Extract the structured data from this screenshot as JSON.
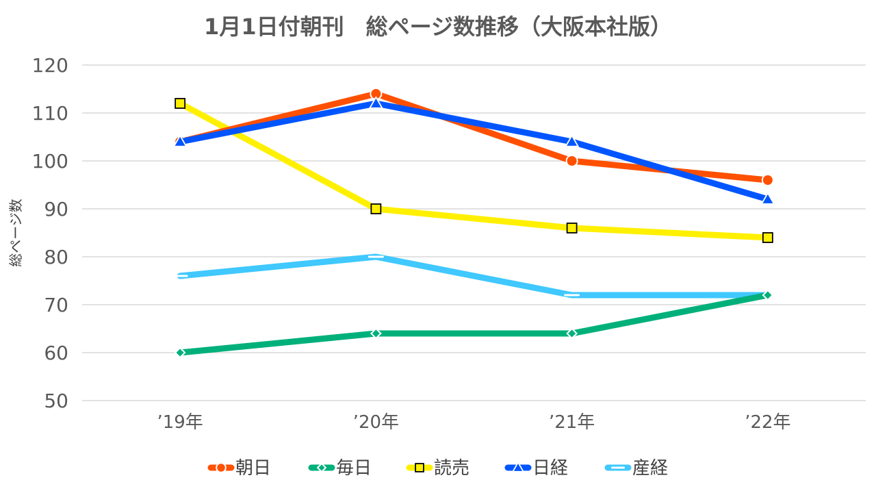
{
  "chart_data": {
    "type": "line",
    "title": "1月1日付朝刊　総ページ数推移（大阪本社版）",
    "xlabel": "",
    "ylabel": "総ページ数",
    "categories": [
      "’19年",
      "’20年",
      "’21年",
      "’22年"
    ],
    "ylim": [
      50,
      120
    ],
    "yticks": [
      50,
      60,
      70,
      80,
      90,
      100,
      110,
      120
    ],
    "grid": true,
    "legend_position": "bottom",
    "series": [
      {
        "name": "朝日",
        "values": [
          104,
          114,
          100,
          96
        ],
        "color": "#FF5000",
        "marker": "circle",
        "marker_color": "#FF5000"
      },
      {
        "name": "毎日",
        "values": [
          60,
          64,
          64,
          72
        ],
        "color": "#00B07A",
        "marker": "diamond",
        "marker_color": "#00B07A"
      },
      {
        "name": "読売",
        "values": [
          112,
          90,
          86,
          84
        ],
        "color": "#FFF000",
        "marker": "square",
        "marker_color": "#FFF000"
      },
      {
        "name": "日経",
        "values": [
          104,
          112,
          104,
          92
        ],
        "color": "#0055FF",
        "marker": "triangle",
        "marker_color": "#0055FF"
      },
      {
        "name": "産経",
        "values": [
          76,
          80,
          72,
          72
        ],
        "color": "#40C8FF",
        "marker": "dash",
        "marker_color": "#40C8FF"
      }
    ]
  }
}
